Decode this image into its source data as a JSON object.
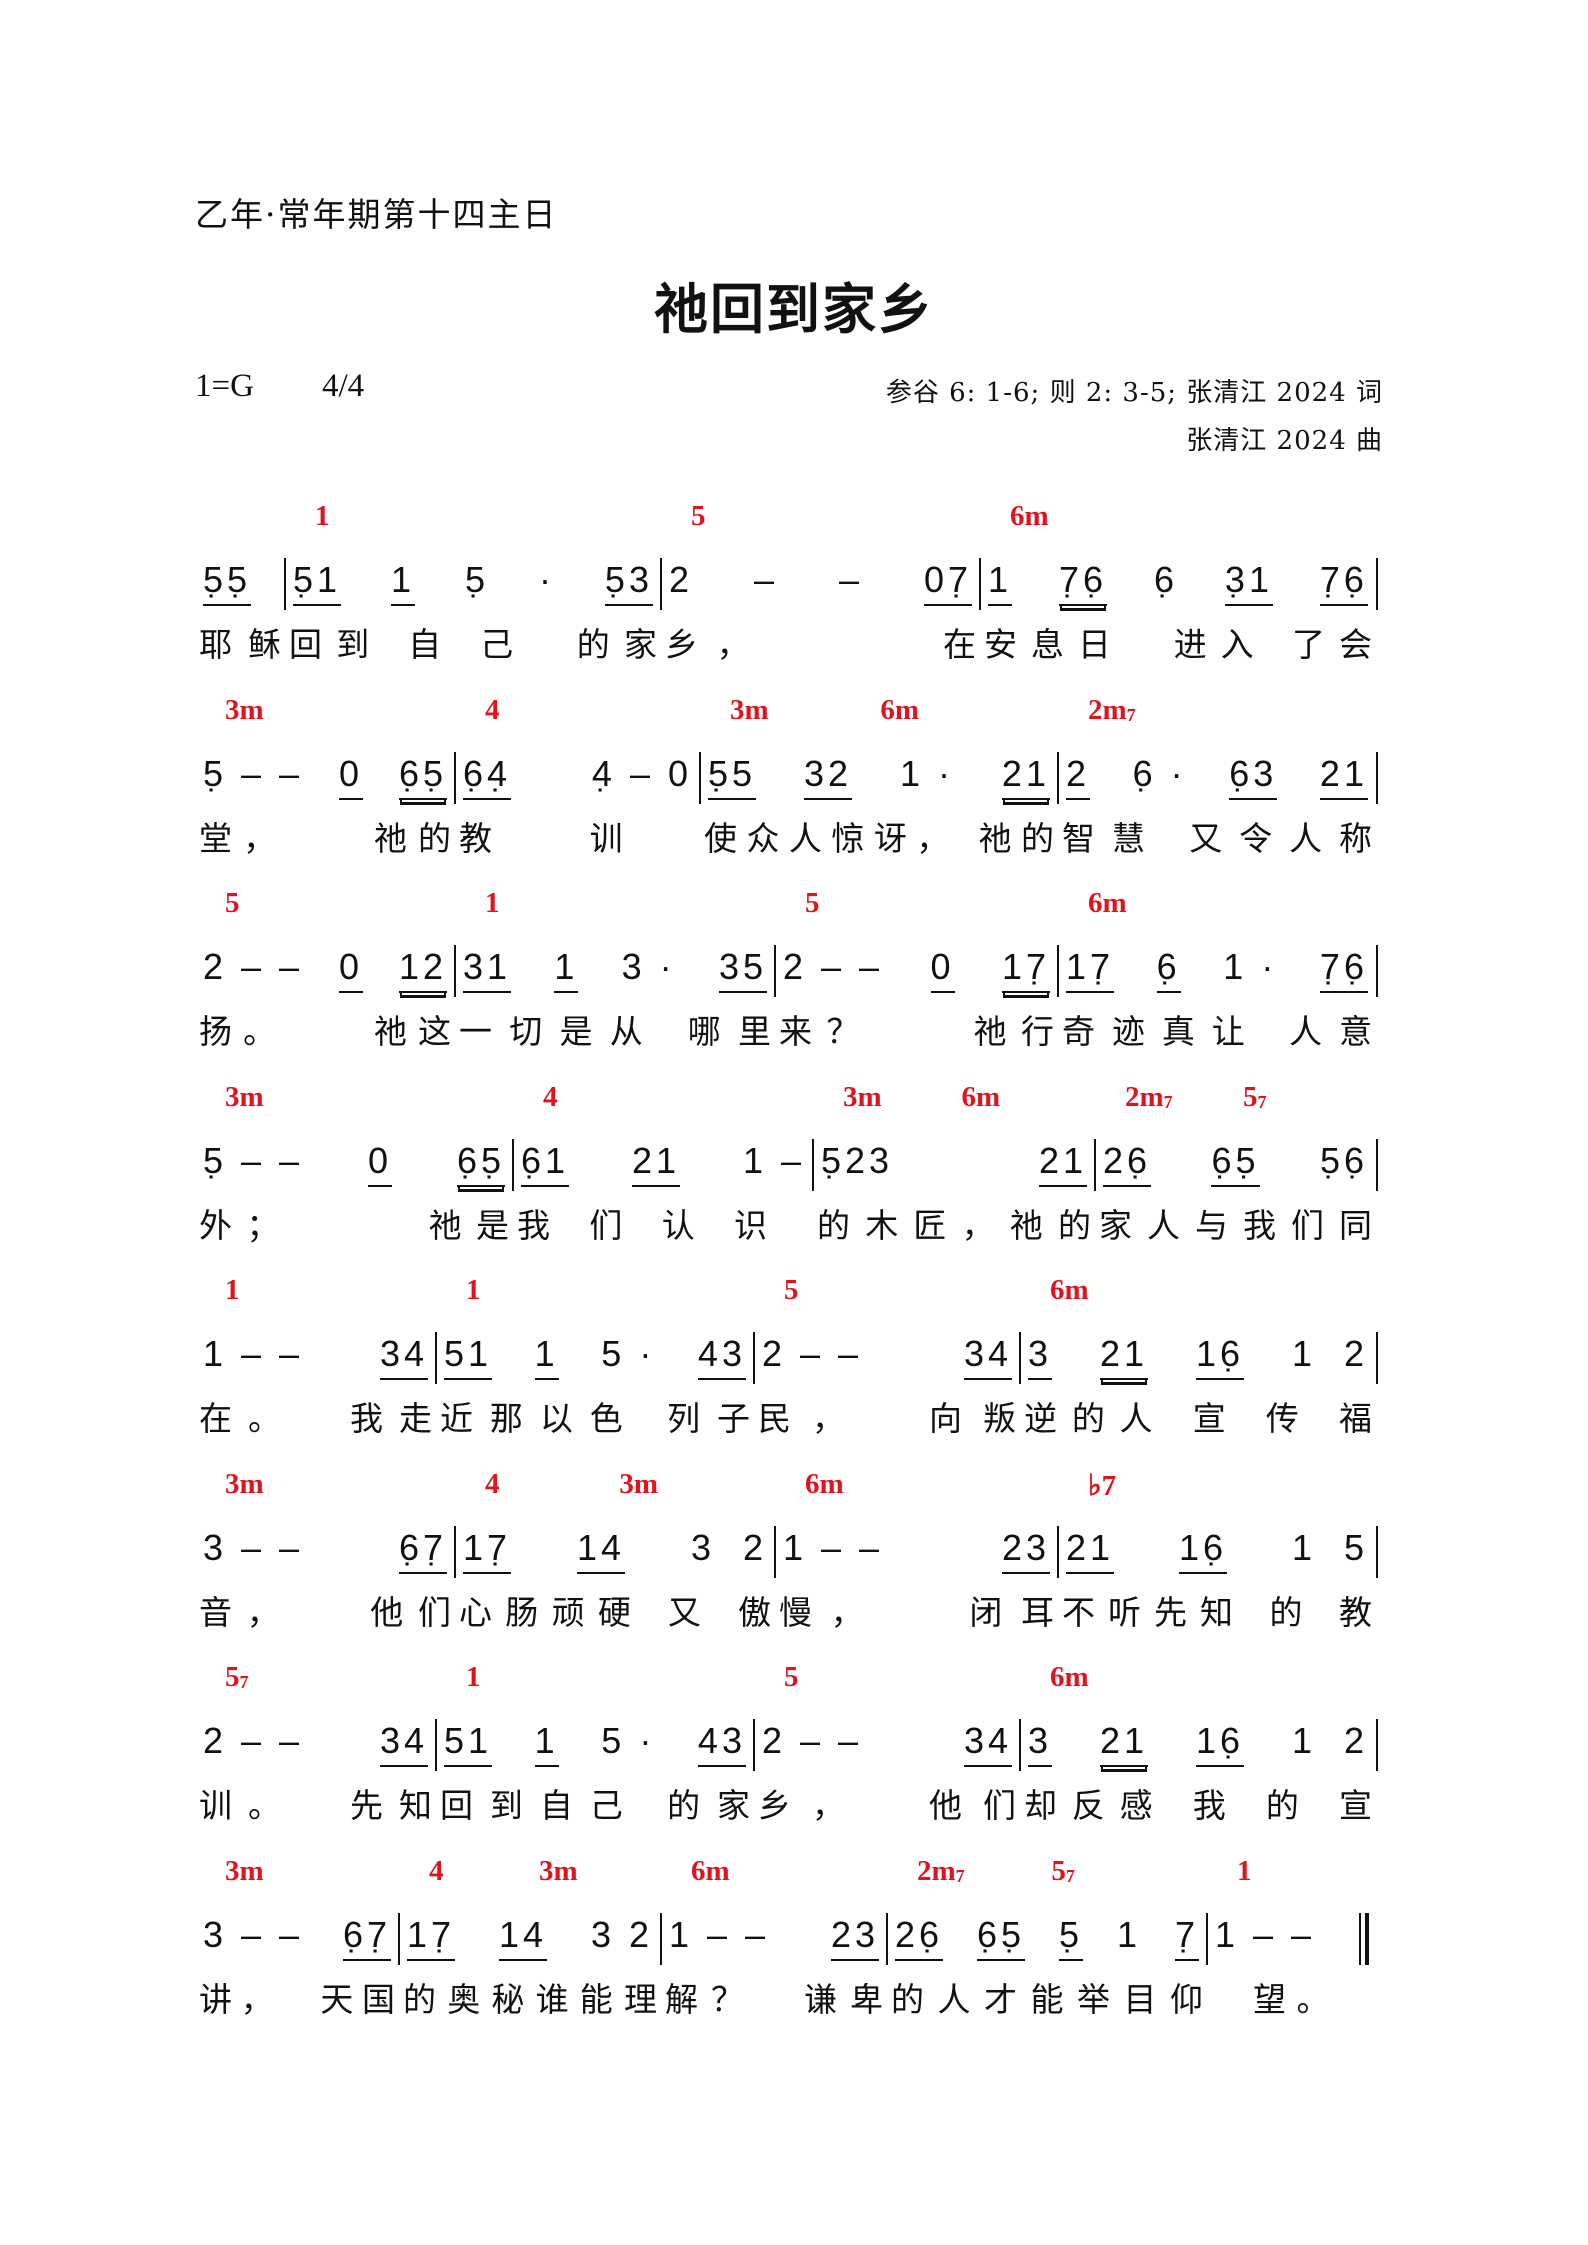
{
  "header": {
    "occasion": "乙年·常年期第十四主日",
    "title": "祂回到家乡",
    "key": "1=G",
    "meter": "4/4",
    "lyrics_credit": "参谷 6: 1-6; 则 2: 3-5; 张清江 2024 词",
    "music_credit": "张清江 2024 曲"
  },
  "colors": {
    "chord": "#e0141e",
    "text": "#111111"
  },
  "rows": [
    {
      "segments": [
        {
          "chords": [],
          "notes": [
            [
              "5̣5̣",
              1
            ]
          ],
          "lyrics": "耶稣"
        },
        {
          "chords": [
            {
              "t": "1"
            }
          ],
          "notes": [
            [
              "5̣1",
              1
            ],
            [
              "1",
              1
            ],
            [
              "5̣",
              0
            ],
            [
              "·",
              0
            ],
            [
              "5̣3",
              1
            ]
          ],
          "lyrics": "回到 自 己  的家"
        },
        {
          "chords": [
            {
              "t": "5"
            }
          ],
          "notes": [
            [
              "2",
              0
            ],
            [
              "–",
              0
            ],
            [
              "–",
              0
            ],
            [
              "07̣",
              1
            ]
          ],
          "lyrics": "乡，      在"
        },
        {
          "chords": [
            {
              "t": "6m"
            }
          ],
          "notes": [
            [
              "1",
              1
            ],
            [
              "7̣6̣",
              2
            ],
            [
              "6̣",
              0
            ],
            [
              "3̣1",
              1
            ],
            [
              "7̣6̣",
              1
            ]
          ],
          "lyrics": "安息日  进入 了会"
        }
      ]
    },
    {
      "segments": [
        {
          "chords": [
            {
              "t": "3m"
            }
          ],
          "notes": [
            [
              "5̣ – –",
              0
            ],
            [
              "0",
              1
            ],
            [
              "6̣5̣",
              2
            ]
          ],
          "lyrics": "堂，    祂的"
        },
        {
          "chords": [
            {
              "t": "4"
            }
          ],
          "notes": [
            [
              "6̣4̣",
              1
            ],
            [
              "4̣ – 0",
              0
            ]
          ],
          "lyrics": "教训       "
        },
        {
          "chords": [
            {
              "t": "3m"
            },
            {
              "t": "6m"
            }
          ],
          "notes": [
            [
              "5̣5",
              1
            ],
            [
              "32",
              1
            ],
            [
              "1 ·",
              0
            ],
            [
              "21",
              2
            ]
          ],
          "lyrics": "使众人惊讶， 祂的"
        },
        {
          "chords": [
            {
              "t": "2m",
              "s": "7"
            }
          ],
          "notes": [
            [
              "2",
              1
            ],
            [
              "6̣ ·",
              0
            ],
            [
              "6̣3",
              1
            ],
            [
              "21",
              1
            ]
          ],
          "lyrics": "智慧 又令人称"
        }
      ]
    },
    {
      "segments": [
        {
          "chords": [
            {
              "t": "5"
            }
          ],
          "notes": [
            [
              "2 – –",
              0
            ],
            [
              "0",
              1
            ],
            [
              "12",
              2
            ]
          ],
          "lyrics": "扬。    祂这"
        },
        {
          "chords": [
            {
              "t": "1"
            }
          ],
          "notes": [
            [
              "31",
              1
            ],
            [
              "1",
              1
            ],
            [
              "3 ·",
              0
            ],
            [
              "35",
              1
            ]
          ],
          "lyrics": "一切是从 哪里"
        },
        {
          "chords": [
            {
              "t": "5"
            }
          ],
          "notes": [
            [
              "2 – –",
              0
            ],
            [
              "0",
              1
            ],
            [
              "17̣",
              2
            ]
          ],
          "lyrics": "来？    祂行"
        },
        {
          "chords": [
            {
              "t": "6m"
            }
          ],
          "notes": [
            [
              "17̣",
              1
            ],
            [
              "6̣",
              1
            ],
            [
              "1 ·",
              0
            ],
            [
              "7̣6̣",
              1
            ]
          ],
          "lyrics": "奇迹真让 人意"
        }
      ]
    },
    {
      "segments": [
        {
          "chords": [
            {
              "t": "3m"
            }
          ],
          "notes": [
            [
              "5̣ – –",
              0
            ],
            [
              "0",
              1
            ],
            [
              "6̣5̣",
              2
            ]
          ],
          "lyrics": "外；      祂是"
        },
        {
          "chords": [
            {
              "t": "4"
            }
          ],
          "notes": [
            [
              "6̣1",
              1
            ],
            [
              "21",
              1
            ],
            [
              "1 –",
              0
            ]
          ],
          "lyrics": "我们认识    "
        },
        {
          "chords": [
            {
              "t": "3m"
            },
            {
              "t": "6m"
            }
          ],
          "notes": [
            [
              "5̣23",
              0
            ],
            [
              "21",
              1
            ]
          ],
          "lyrics": "的木匠，祂的"
        },
        {
          "chords": [
            {
              "t": "2m",
              "s": "7"
            },
            {
              "t": "5",
              "s": "7"
            }
          ],
          "notes": [
            [
              "26̣",
              1
            ],
            [
              "6̣5̣",
              1
            ],
            [
              "5̣6̣",
              0
            ]
          ],
          "lyrics": "家人与我们同"
        }
      ]
    },
    {
      "segments": [
        {
          "chords": [
            {
              "t": "1"
            }
          ],
          "notes": [
            [
              "1 – –",
              0
            ],
            [
              "34",
              1
            ]
          ],
          "lyrics": "在。  我走"
        },
        {
          "chords": [
            {
              "t": "1"
            }
          ],
          "notes": [
            [
              "51",
              1
            ],
            [
              "1",
              1
            ],
            [
              "5 ·",
              0
            ],
            [
              "43",
              1
            ]
          ],
          "lyrics": "近那以色 列子"
        },
        {
          "chords": [
            {
              "t": "5"
            }
          ],
          "notes": [
            [
              "2 – –",
              0
            ],
            [
              "34",
              1
            ]
          ],
          "lyrics": "民，  向叛"
        },
        {
          "chords": [
            {
              "t": "6m"
            }
          ],
          "notes": [
            [
              "3",
              1
            ],
            [
              "21",
              2
            ],
            [
              "16̣",
              1
            ],
            [
              "1  2",
              0
            ]
          ],
          "lyrics": "逆的人 宣 传 福"
        }
      ]
    },
    {
      "segments": [
        {
          "chords": [
            {
              "t": "3m"
            }
          ],
          "notes": [
            [
              "3 – –",
              0
            ],
            [
              "6̣7̣",
              1
            ]
          ],
          "lyrics": "音，   他们"
        },
        {
          "chords": [
            {
              "t": "4"
            },
            {
              "t": "3m"
            }
          ],
          "notes": [
            [
              "17̣",
              1
            ],
            [
              "14",
              1
            ],
            [
              "3  2",
              0
            ]
          ],
          "lyrics": "心肠顽硬 又 傲"
        },
        {
          "chords": [
            {
              "t": "6m"
            }
          ],
          "notes": [
            [
              "1 – –",
              0
            ],
            [
              "23",
              1
            ]
          ],
          "lyrics": "慢，   闭耳"
        },
        {
          "chords": [
            {
              "t": "♭7"
            }
          ],
          "notes": [
            [
              "21",
              1
            ],
            [
              "16̣",
              1
            ],
            [
              "1  5",
              0
            ]
          ],
          "lyrics": "不听先知 的 教"
        }
      ]
    },
    {
      "segments": [
        {
          "chords": [
            {
              "t": "5",
              "s": "7"
            }
          ],
          "notes": [
            [
              "2 – –",
              0
            ],
            [
              "34",
              1
            ]
          ],
          "lyrics": "训。  先知"
        },
        {
          "chords": [
            {
              "t": "1"
            }
          ],
          "notes": [
            [
              "51",
              1
            ],
            [
              "1",
              1
            ],
            [
              "5 ·",
              0
            ],
            [
              "43",
              1
            ]
          ],
          "lyrics": "回到自己 的家"
        },
        {
          "chords": [
            {
              "t": "5"
            }
          ],
          "notes": [
            [
              "2 – –",
              0
            ],
            [
              "34",
              1
            ]
          ],
          "lyrics": "乡，  他们"
        },
        {
          "chords": [
            {
              "t": "6m"
            }
          ],
          "notes": [
            [
              "3",
              1
            ],
            [
              "21",
              2
            ],
            [
              "16̣",
              1
            ],
            [
              "1  2",
              0
            ]
          ],
          "lyrics": "却反感 我 的 宣"
        }
      ]
    },
    {
      "segments": [
        {
          "chords": [
            {
              "t": "3m"
            }
          ],
          "notes": [
            [
              "3 – –",
              0
            ],
            [
              "6̣7̣",
              1
            ]
          ],
          "lyrics": "讲，  天国"
        },
        {
          "chords": [
            {
              "t": "4"
            },
            {
              "t": "3m"
            }
          ],
          "notes": [
            [
              "17̣",
              1
            ],
            [
              "14",
              1
            ],
            [
              "3 2",
              0
            ]
          ],
          "lyrics": "的奥秘谁能理"
        },
        {
          "chords": [
            {
              "t": "6m"
            }
          ],
          "notes": [
            [
              "1 – –",
              0
            ],
            [
              "23",
              1
            ]
          ],
          "lyrics": "解？  谦卑"
        },
        {
          "chords": [
            {
              "t": "2m",
              "s": "7"
            },
            {
              "t": "5",
              "s": "7"
            }
          ],
          "notes": [
            [
              "26̣",
              1
            ],
            [
              "6̣5̣",
              1
            ],
            [
              "5̣",
              1
            ],
            [
              "1",
              0
            ],
            [
              "7̣",
              1
            ]
          ],
          "lyrics": "的人才能举目仰"
        },
        {
          "chords": [
            {
              "t": "1"
            }
          ],
          "notes": [
            [
              "1 – –",
              0
            ]
          ],
          "lyrics": "  望。   "
        }
      ]
    }
  ]
}
